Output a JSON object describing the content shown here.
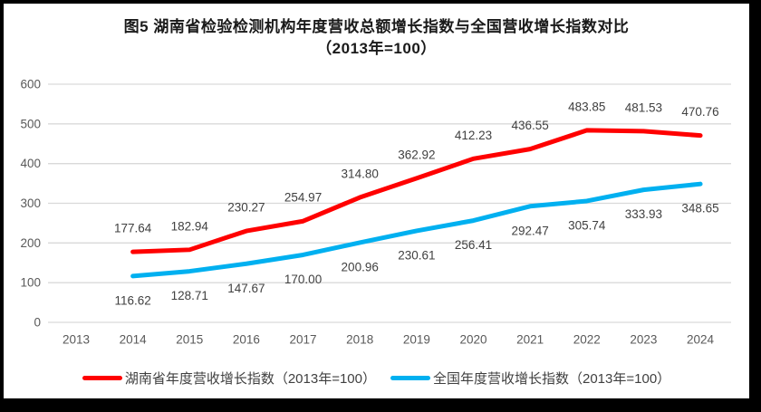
{
  "chart_data": {
    "type": "line",
    "title": "图5 湖南省检验检测机构年度营收总额增长指数与全国营收增长指数对比",
    "subtitle": "（2013年=100）",
    "categories": [
      2013,
      2014,
      2015,
      2016,
      2017,
      2018,
      2019,
      2020,
      2021,
      2022,
      2023,
      2024
    ],
    "series": [
      {
        "name": "湖南省年度营收增长指数（2013年=100）",
        "color": "#FF0000",
        "start_year": 2014,
        "label_position": "above",
        "values": [
          177.64,
          182.94,
          230.27,
          254.97,
          314.8,
          362.92,
          412.23,
          436.55,
          483.85,
          481.53,
          470.76
        ]
      },
      {
        "name": "全国年度营收增长指数（2013年=100）",
        "color": "#00B0F0",
        "start_year": 2014,
        "label_position": "below",
        "values": [
          116.62,
          128.71,
          147.67,
          170.0,
          200.96,
          230.61,
          256.41,
          292.47,
          305.74,
          333.93,
          348.65
        ]
      }
    ],
    "ylim": [
      0,
      600
    ],
    "y_ticks": [
      0,
      100,
      200,
      300,
      400,
      500,
      600
    ],
    "grid": true,
    "legend_position": "bottom",
    "colors": {
      "grid": "#D9D9D9",
      "tick_text": "#595959",
      "data_label_text": "#404040",
      "frame": "#000000",
      "plot_background": "#FFFFFF"
    }
  }
}
